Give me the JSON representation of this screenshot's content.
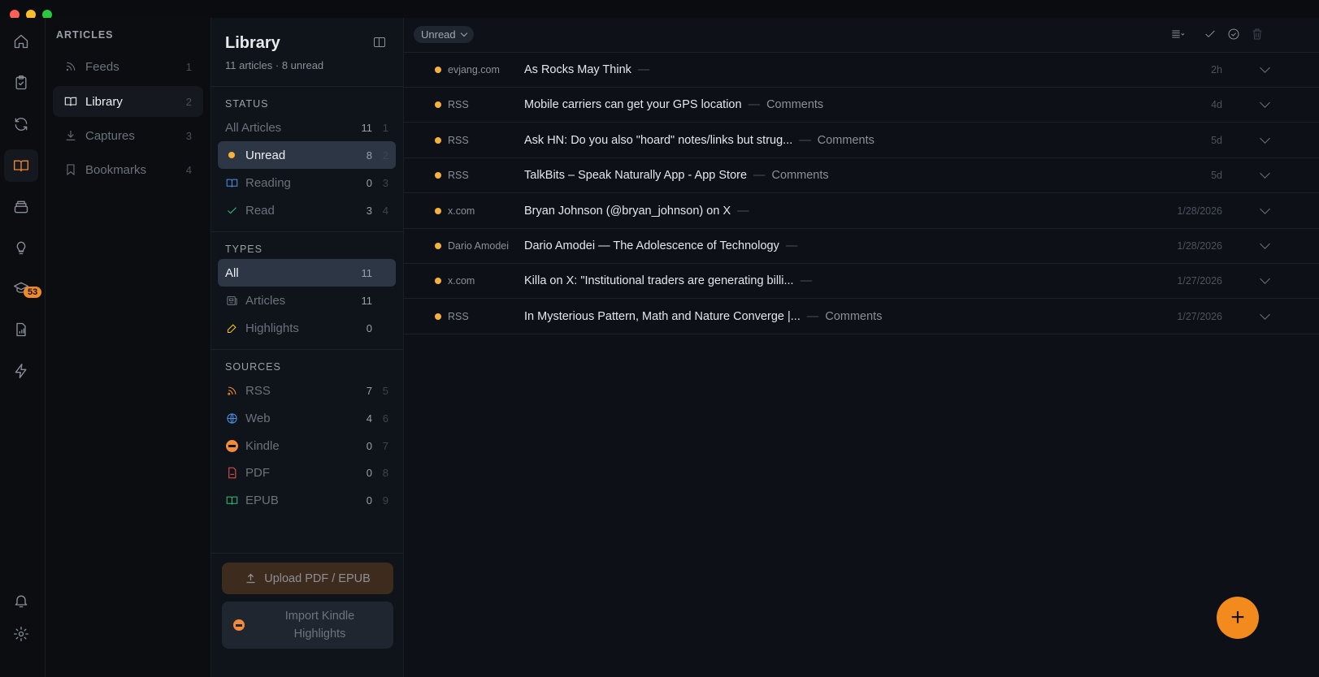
{
  "rail": {
    "badge": "53",
    "icons": [
      "home-icon",
      "clipboard-check-icon",
      "refresh-icon",
      "book-open-icon",
      "archive-icon",
      "lightbulb-icon",
      "graduation-cap-icon",
      "report-icon",
      "lightning-icon",
      "bell-icon",
      "gear-icon"
    ],
    "accent": "#f0892a"
  },
  "sidebar": {
    "heading": "ARTICLES",
    "items": [
      {
        "label": "Feeds",
        "count": "1"
      },
      {
        "label": "Library",
        "count": "2"
      },
      {
        "label": "Captures",
        "count": "3"
      },
      {
        "label": "Bookmarks",
        "count": "4"
      }
    ]
  },
  "library": {
    "title": "Library",
    "subtitle": "11 articles · 8 unread",
    "status_heading": "STATUS",
    "status": [
      {
        "label": "All Articles",
        "count": "11",
        "key": "1"
      },
      {
        "label": "Unread",
        "count": "8",
        "key": "2"
      },
      {
        "label": "Reading",
        "count": "0",
        "key": "3"
      },
      {
        "label": "Read",
        "count": "3",
        "key": "4"
      }
    ],
    "types_heading": "TYPES",
    "types": [
      {
        "label": "All",
        "count": "11"
      },
      {
        "label": "Articles",
        "count": "11"
      },
      {
        "label": "Highlights",
        "count": "0"
      }
    ],
    "sources_heading": "SOURCES",
    "sources": [
      {
        "label": "RSS",
        "count": "7",
        "key": "5"
      },
      {
        "label": "Web",
        "count": "4",
        "key": "6"
      },
      {
        "label": "Kindle",
        "count": "0",
        "key": "7"
      },
      {
        "label": "PDF",
        "count": "0",
        "key": "8"
      },
      {
        "label": "EPUB",
        "count": "0",
        "key": "9"
      }
    ],
    "upload_label": "Upload PDF / EPUB",
    "import_label": "Import Kindle Highlights"
  },
  "main": {
    "filter": "Unread",
    "articles": [
      {
        "source": "evjang.com",
        "title": "As Rocks May Think",
        "comments": "",
        "time": "2h"
      },
      {
        "source": "RSS",
        "title": "Mobile carriers can get your GPS location",
        "comments": "Comments",
        "time": "4d"
      },
      {
        "source": "RSS",
        "title": "Ask HN: Do you also \"hoard\" notes/links but strug...",
        "comments": "Comments",
        "time": "5d"
      },
      {
        "source": "RSS",
        "title": "TalkBits – Speak Naturally App - App Store",
        "comments": "Comments",
        "time": "5d"
      },
      {
        "source": "x.com",
        "title": "Bryan Johnson (@bryan_johnson) on X",
        "comments": "",
        "time": "1/28/2026"
      },
      {
        "source": "Dario Amodei",
        "title": "Dario Amodei — The Adolescence of Technology",
        "comments": "",
        "time": "1/28/2026"
      },
      {
        "source": "x.com",
        "title": "Killa on X: \"Institutional traders are generating billi...",
        "comments": "",
        "time": "1/27/2026"
      },
      {
        "source": "RSS",
        "title": "In Mysterious Pattern, Math and Nature Converge |...",
        "comments": "Comments",
        "time": "1/27/2026"
      }
    ],
    "dash": "—",
    "fab": "+"
  }
}
